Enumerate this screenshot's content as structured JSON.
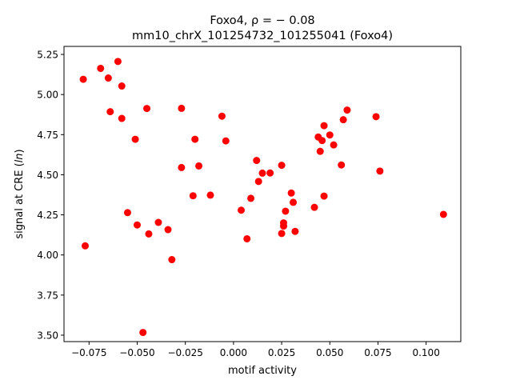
{
  "chart_data": {
    "type": "scatter",
    "title_line1": "Foxo4, ρ = − 0.08",
    "title_line2": "mm10_chrX_101254732_101255041 (Foxo4)",
    "xlabel": "motif activity",
    "ylabel": "signal at CRE (ln)",
    "xlim": [
      -0.088,
      0.118
    ],
    "ylim": [
      3.46,
      5.3
    ],
    "xticks": [
      -0.075,
      -0.05,
      -0.025,
      0.0,
      0.025,
      0.05,
      0.075,
      0.1
    ],
    "xtick_labels": [
      "−0.075",
      "−0.050",
      "−0.025",
      "0.000",
      "0.025",
      "0.050",
      "0.075",
      "0.100"
    ],
    "yticks": [
      3.5,
      3.75,
      4.0,
      4.25,
      4.5,
      4.75,
      5.0,
      5.25
    ],
    "ytick_labels": [
      "3.50",
      "3.75",
      "4.00",
      "4.25",
      "4.50",
      "4.75",
      "5.00",
      "5.25"
    ],
    "marker_color": "#ff0000",
    "points": [
      [
        -0.078,
        5.095
      ],
      [
        -0.077,
        4.057
      ],
      [
        -0.069,
        5.163
      ],
      [
        -0.065,
        5.103
      ],
      [
        -0.064,
        4.893
      ],
      [
        -0.06,
        5.206
      ],
      [
        -0.058,
        5.053
      ],
      [
        -0.058,
        4.851
      ],
      [
        -0.055,
        4.264
      ],
      [
        -0.051,
        4.721
      ],
      [
        -0.05,
        4.187
      ],
      [
        -0.047,
        3.517
      ],
      [
        -0.045,
        4.913
      ],
      [
        -0.044,
        4.131
      ],
      [
        -0.039,
        4.203
      ],
      [
        -0.034,
        4.158
      ],
      [
        -0.032,
        3.971
      ],
      [
        -0.027,
        4.914
      ],
      [
        -0.027,
        4.545
      ],
      [
        -0.021,
        4.369
      ],
      [
        -0.02,
        4.721
      ],
      [
        -0.018,
        4.555
      ],
      [
        -0.012,
        4.373
      ],
      [
        -0.006,
        4.865
      ],
      [
        -0.004,
        4.711
      ],
      [
        0.004,
        4.279
      ],
      [
        0.007,
        4.101
      ],
      [
        0.009,
        4.353
      ],
      [
        0.012,
        4.589
      ],
      [
        0.013,
        4.458
      ],
      [
        0.015,
        4.51
      ],
      [
        0.019,
        4.511
      ],
      [
        0.025,
        4.559
      ],
      [
        0.025,
        4.134
      ],
      [
        0.026,
        4.18
      ],
      [
        0.026,
        4.2
      ],
      [
        0.027,
        4.273
      ],
      [
        0.03,
        4.386
      ],
      [
        0.031,
        4.328
      ],
      [
        0.032,
        4.147
      ],
      [
        0.042,
        4.297
      ],
      [
        0.044,
        4.735
      ],
      [
        0.045,
        4.646
      ],
      [
        0.046,
        4.713
      ],
      [
        0.047,
        4.806
      ],
      [
        0.047,
        4.367
      ],
      [
        0.05,
        4.748
      ],
      [
        0.052,
        4.686
      ],
      [
        0.056,
        4.561
      ],
      [
        0.057,
        4.843
      ],
      [
        0.059,
        4.903
      ],
      [
        0.074,
        4.862
      ],
      [
        0.076,
        4.523
      ],
      [
        0.109,
        4.253
      ]
    ]
  }
}
